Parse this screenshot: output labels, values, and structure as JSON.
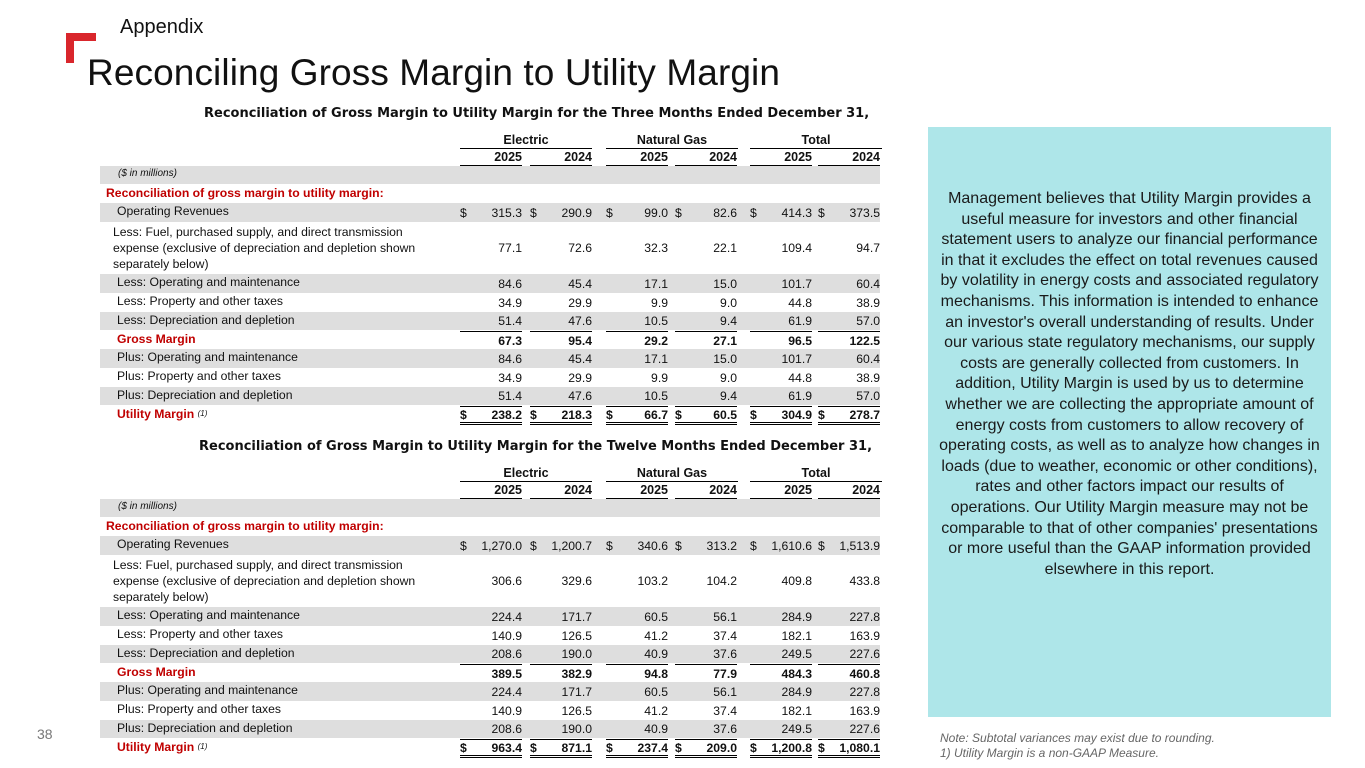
{
  "header": {
    "section": "Appendix",
    "title": "Reconciling Gross Margin to Utility Margin"
  },
  "units_label": "($ in millions)",
  "column_groups": [
    "Electric",
    "Natural Gas",
    "Total"
  ],
  "years": [
    "2025",
    "2024",
    "2025",
    "2024",
    "2025",
    "2024"
  ],
  "tables": [
    {
      "title": "Reconciliation of Gross Margin to Utility Margin for the Three Months Ended December 31,",
      "section_label": "Reconciliation of gross margin to utility margin:",
      "rows": [
        {
          "label": "Operating Revenues",
          "values": [
            "315.3",
            "290.9",
            "99.0",
            "82.6",
            "414.3",
            "373.5"
          ],
          "dollar": true
        },
        {
          "label": "Less:  Fuel, purchased supply, and direct transmission expense (exclusive of depreciation and depletion shown separately below)",
          "values": [
            "77.1",
            "72.6",
            "32.3",
            "22.1",
            "109.4",
            "94.7"
          ]
        },
        {
          "label": "Less:  Operating and maintenance",
          "values": [
            "84.6",
            "45.4",
            "17.1",
            "15.0",
            "101.7",
            "60.4"
          ]
        },
        {
          "label": "Less:  Property and other taxes",
          "values": [
            "34.9",
            "29.9",
            "9.9",
            "9.0",
            "44.8",
            "38.9"
          ]
        },
        {
          "label": "Less:  Depreciation and depletion",
          "values": [
            "51.4",
            "47.6",
            "10.5",
            "9.4",
            "61.9",
            "57.0"
          ]
        },
        {
          "label": "Gross Margin",
          "values": [
            "67.3",
            "95.4",
            "29.2",
            "27.1",
            "96.5",
            "122.5"
          ]
        },
        {
          "label": "Plus:  Operating and maintenance",
          "values": [
            "84.6",
            "45.4",
            "17.1",
            "15.0",
            "101.7",
            "60.4"
          ]
        },
        {
          "label": "Plus:  Property and other taxes",
          "values": [
            "34.9",
            "29.9",
            "9.9",
            "9.0",
            "44.8",
            "38.9"
          ]
        },
        {
          "label": "Plus:  Depreciation and depletion",
          "values": [
            "51.4",
            "47.6",
            "10.5",
            "9.4",
            "61.9",
            "57.0"
          ]
        },
        {
          "label": "Utility Margin",
          "footnote": "(1)",
          "values": [
            "238.2",
            "218.3",
            "66.7",
            "60.5",
            "304.9",
            "278.7"
          ],
          "dollar": true
        }
      ]
    },
    {
      "title": "Reconciliation of Gross Margin to Utility Margin for the Twelve Months Ended December 31,",
      "section_label": "Reconciliation of gross margin to utility margin:",
      "rows": [
        {
          "label": "Operating Revenues",
          "values": [
            "1,270.0",
            "1,200.7",
            "340.6",
            "313.2",
            "1,610.6",
            "1,513.9"
          ],
          "dollar": true
        },
        {
          "label": "Less:  Fuel, purchased supply, and direct transmission expense (exclusive of depreciation and depletion shown separately below)",
          "values": [
            "306.6",
            "329.6",
            "103.2",
            "104.2",
            "409.8",
            "433.8"
          ]
        },
        {
          "label": "Less:  Operating and maintenance",
          "values": [
            "224.4",
            "171.7",
            "60.5",
            "56.1",
            "284.9",
            "227.8"
          ]
        },
        {
          "label": "Less:  Property and other taxes",
          "values": [
            "140.9",
            "126.5",
            "41.2",
            "37.4",
            "182.1",
            "163.9"
          ]
        },
        {
          "label": "Less:  Depreciation and depletion",
          "values": [
            "208.6",
            "190.0",
            "40.9",
            "37.6",
            "249.5",
            "227.6"
          ]
        },
        {
          "label": "Gross Margin",
          "values": [
            "389.5",
            "382.9",
            "94.8",
            "77.9",
            "484.3",
            "460.8"
          ]
        },
        {
          "label": "Plus:  Operating and maintenance",
          "values": [
            "224.4",
            "171.7",
            "60.5",
            "56.1",
            "284.9",
            "227.8"
          ]
        },
        {
          "label": "Plus:  Property and other taxes",
          "values": [
            "140.9",
            "126.5",
            "41.2",
            "37.4",
            "182.1",
            "163.9"
          ]
        },
        {
          "label": "Plus:  Depreciation and depletion",
          "values": [
            "208.6",
            "190.0",
            "40.9",
            "37.6",
            "249.5",
            "227.6"
          ]
        },
        {
          "label": "Utility Margin",
          "footnote": "(1)",
          "values": [
            "963.4",
            "871.1",
            "237.4",
            "209.0",
            "1,200.8",
            "1,080.1"
          ],
          "dollar": true
        }
      ]
    }
  ],
  "sidebar_text": "Management believes that Utility Margin provides a useful measure for investors and other financial statement users to analyze our financial performance in that it excludes the effect on total revenues caused by volatility in energy costs and associated regulatory mechanisms. This information is intended to enhance an investor's overall understanding of results. Under our various state regulatory mechanisms, our supply costs are generally collected from customers. In addition, Utility Margin is used by us to determine whether we are collecting the appropriate amount of energy costs from customers to allow recovery of operating costs, as well as to analyze how changes in loads (due to weather, economic or other conditions), rates and other factors impact our results of operations. Our Utility Margin measure may not be comparable to that of other companies' presentations or more useful than the GAAP information provided elsewhere in this report.",
  "notes": [
    "Note: Subtotal variances may exist due to rounding.",
    "1) Utility Margin is a non-GAAP Measure."
  ],
  "page_number": "38",
  "colors": {
    "accent_red": "#c00000",
    "sidebar_bg": "#aee6e9",
    "row_shade": "#dedede"
  }
}
